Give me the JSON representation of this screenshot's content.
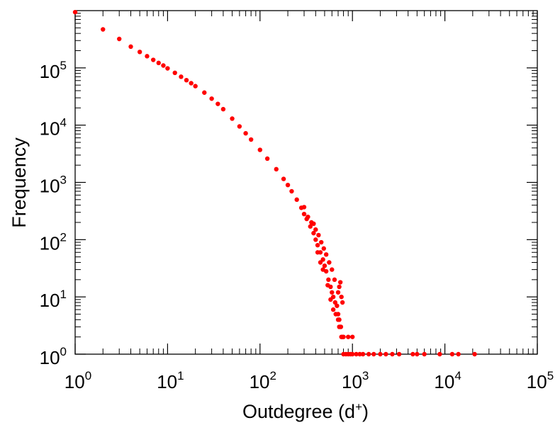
{
  "chart_data": {
    "type": "scatter",
    "title": "",
    "xlabel": "Outdegree (d",
    "xlabel_sup": "+",
    "xlabel_suffix": ")",
    "ylabel": "Frequency",
    "xscale": "log",
    "yscale": "log",
    "xlim": [
      1,
      100000
    ],
    "ylim": [
      1,
      1000000
    ],
    "grid": false,
    "legend": "none",
    "marker_color": "#ff0000",
    "x_ticks": [
      {
        "base": "10",
        "exp": "0",
        "value": 1
      },
      {
        "base": "10",
        "exp": "1",
        "value": 10
      },
      {
        "base": "10",
        "exp": "2",
        "value": 100
      },
      {
        "base": "10",
        "exp": "3",
        "value": 1000
      },
      {
        "base": "10",
        "exp": "4",
        "value": 10000
      },
      {
        "base": "10",
        "exp": "5",
        "value": 100000
      }
    ],
    "y_ticks": [
      {
        "base": "10",
        "exp": "0",
        "value": 1
      },
      {
        "base": "10",
        "exp": "1",
        "value": 10
      },
      {
        "base": "10",
        "exp": "2",
        "value": 100
      },
      {
        "base": "10",
        "exp": "3",
        "value": 1000
      },
      {
        "base": "10",
        "exp": "4",
        "value": 10000
      },
      {
        "base": "10",
        "exp": "5",
        "value": 100000
      }
    ],
    "series": [
      {
        "points": [
          [
            1,
            940000
          ],
          [
            2,
            470000
          ],
          [
            3,
            320000
          ],
          [
            4,
            235000
          ],
          [
            5,
            190000
          ],
          [
            6,
            160000
          ],
          [
            7,
            138000
          ],
          [
            8,
            122000
          ],
          [
            9,
            110000
          ],
          [
            10,
            98000
          ],
          [
            12,
            82000
          ],
          [
            14,
            70000
          ],
          [
            16,
            61000
          ],
          [
            18,
            54000
          ],
          [
            20,
            48000
          ],
          [
            25,
            37000
          ],
          [
            30,
            29000
          ],
          [
            35,
            23500
          ],
          [
            40,
            19000
          ],
          [
            50,
            13000
          ],
          [
            60,
            9500
          ],
          [
            70,
            7200
          ],
          [
            80,
            5600
          ],
          [
            100,
            3700
          ],
          [
            120,
            2600
          ],
          [
            150,
            1700
          ],
          [
            180,
            1150
          ],
          [
            200,
            900
          ],
          [
            220,
            700
          ],
          [
            250,
            500
          ],
          [
            280,
            360
          ],
          [
            300,
            280
          ],
          [
            320,
            230
          ],
          [
            350,
            170
          ],
          [
            380,
            130
          ],
          [
            400,
            100
          ],
          [
            420,
            80
          ],
          [
            450,
            60
          ],
          [
            480,
            45
          ],
          [
            500,
            35
          ],
          [
            520,
            28
          ],
          [
            550,
            20
          ],
          [
            580,
            15
          ],
          [
            600,
            12
          ],
          [
            620,
            10
          ],
          [
            650,
            8
          ],
          [
            680,
            7
          ],
          [
            700,
            5
          ],
          [
            720,
            4
          ],
          [
            750,
            3
          ],
          [
            800,
            2
          ],
          [
            900,
            2
          ],
          [
            1000,
            2
          ],
          [
            330,
            250
          ],
          [
            360,
            200
          ],
          [
            400,
            150
          ],
          [
            430,
            120
          ],
          [
            460,
            90
          ],
          [
            490,
            70
          ],
          [
            520,
            55
          ],
          [
            560,
            40
          ],
          [
            600,
            30
          ],
          [
            640,
            20
          ],
          [
            700,
            12
          ],
          [
            720,
            15
          ],
          [
            740,
            18
          ],
          [
            760,
            10
          ],
          [
            780,
            8
          ],
          [
            420,
            60
          ],
          [
            450,
            40
          ],
          [
            480,
            30
          ],
          [
            540,
            16
          ],
          [
            580,
            9
          ],
          [
            620,
            6
          ],
          [
            660,
            5
          ],
          [
            700,
            4
          ],
          [
            740,
            3
          ],
          [
            780,
            2
          ],
          [
            720,
            3
          ],
          [
            760,
            2
          ],
          [
            800,
            1
          ],
          [
            850,
            1
          ],
          [
            900,
            1
          ],
          [
            950,
            1
          ],
          [
            1000,
            1
          ],
          [
            1100,
            1
          ],
          [
            1200,
            1
          ],
          [
            1300,
            1
          ],
          [
            1500,
            1
          ],
          [
            1700,
            1
          ],
          [
            2000,
            1
          ],
          [
            2300,
            1
          ],
          [
            2700,
            1
          ],
          [
            3200,
            1
          ],
          [
            4500,
            1
          ],
          [
            5000,
            1
          ],
          [
            6000,
            1
          ],
          [
            8800,
            1
          ],
          [
            12000,
            1
          ],
          [
            14000,
            1
          ],
          [
            21000,
            1
          ],
          [
            380,
            190
          ],
          [
            300,
            370
          ]
        ]
      }
    ]
  }
}
